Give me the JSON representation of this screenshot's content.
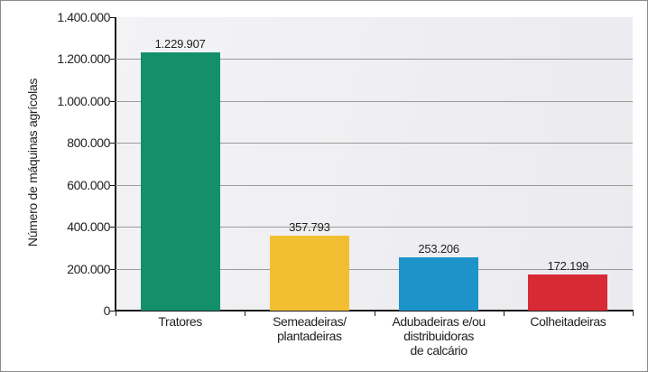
{
  "chart_data": {
    "type": "bar",
    "title": "",
    "xlabel": "",
    "ylabel": "Número de máquinas agrícolas",
    "ylim": [
      0,
      1400000
    ],
    "yticks": [
      "0",
      "200.000",
      "400.000",
      "600.000",
      "800.000",
      "1.000.000",
      "1.200.000",
      "1.400.000"
    ],
    "grid": true,
    "legend": "none",
    "categories": [
      "Tratores",
      "Semeadeiras/\nplantadeiras",
      "Adubadeiras e/ou\ndistribuidoras\nde calcário",
      "Colheitadeiras"
    ],
    "values": [
      1229907,
      357793,
      253206,
      172199
    ],
    "value_labels": [
      "1.229.907",
      "357.793",
      "253.206",
      "172.199"
    ],
    "colors": [
      "#13906a",
      "#f2bf32",
      "#1c93c9",
      "#d82a35"
    ]
  }
}
